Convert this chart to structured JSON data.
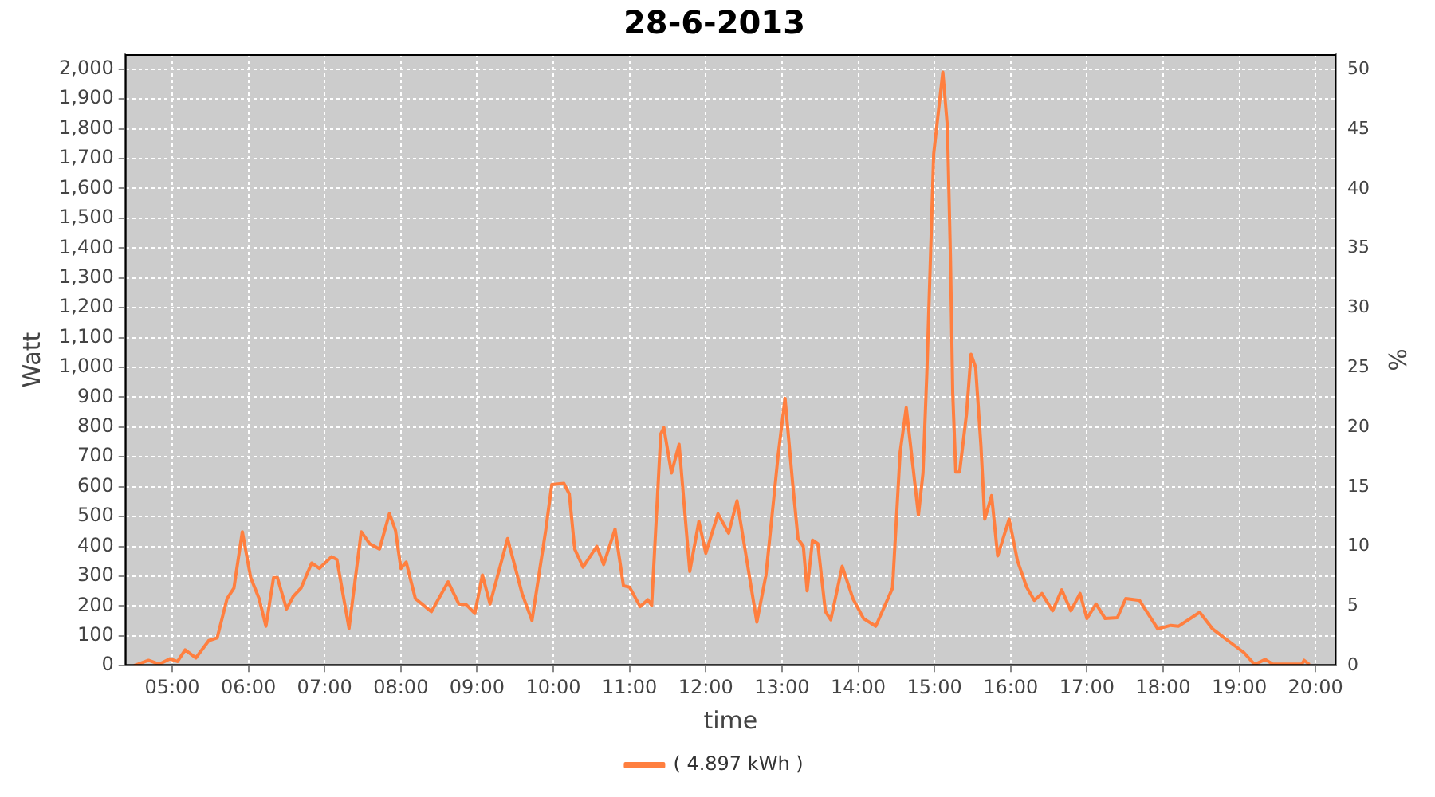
{
  "chart_data": {
    "type": "line",
    "title": "28-6-2013",
    "xlabel": "time",
    "ylabel": "Watt",
    "y2label": "%",
    "xlim": [
      4.38,
      20.27
    ],
    "xticks": [
      {
        "value": 5,
        "label": "05:00"
      },
      {
        "value": 6,
        "label": "06:00"
      },
      {
        "value": 7,
        "label": "07:00"
      },
      {
        "value": 8,
        "label": "08:00"
      },
      {
        "value": 9,
        "label": "09:00"
      },
      {
        "value": 10,
        "label": "10:00"
      },
      {
        "value": 11,
        "label": "11:00"
      },
      {
        "value": 12,
        "label": "12:00"
      },
      {
        "value": 13,
        "label": "13:00"
      },
      {
        "value": 14,
        "label": "14:00"
      },
      {
        "value": 15,
        "label": "15:00"
      },
      {
        "value": 16,
        "label": "16:00"
      },
      {
        "value": 17,
        "label": "17:00"
      },
      {
        "value": 18,
        "label": "18:00"
      },
      {
        "value": 19,
        "label": "19:00"
      },
      {
        "value": 20,
        "label": "20:00"
      }
    ],
    "ylim": [
      0,
      2050
    ],
    "yticks": [
      0,
      100,
      200,
      300,
      400,
      500,
      600,
      700,
      800,
      900,
      {
        "value": 1000,
        "label": "1,000"
      },
      {
        "value": 1100,
        "label": "1,100"
      },
      {
        "value": 1200,
        "label": "1,200"
      },
      {
        "value": 1300,
        "label": "1,300"
      },
      {
        "value": 1400,
        "label": "1,400"
      },
      {
        "value": 1500,
        "label": "1,500"
      },
      {
        "value": 1600,
        "label": "1,600"
      },
      {
        "value": 1700,
        "label": "1,700"
      },
      {
        "value": 1800,
        "label": "1,800"
      },
      {
        "value": 1900,
        "label": "1,900"
      },
      {
        "value": 2000,
        "label": "2,000"
      }
    ],
    "y2lim": [
      0,
      51.3
    ],
    "y2ticks": [
      0,
      5,
      10,
      15,
      20,
      25,
      30,
      35,
      40,
      45,
      50
    ],
    "grid": true,
    "legend": "bottom",
    "marker": "none",
    "line_style": "solid",
    "series": [
      {
        "name": "( 4.897 kWh )",
        "color": "#ff7f3f",
        "x": [
          4.5,
          4.55,
          4.69,
          4.83,
          4.97,
          5.07,
          5.17,
          5.31,
          5.48,
          5.59,
          5.72,
          5.81,
          5.92,
          6.03,
          6.14,
          6.23,
          6.33,
          6.38,
          6.5,
          6.59,
          6.69,
          6.83,
          6.93,
          7.09,
          7.16,
          7.32,
          7.48,
          7.59,
          7.72,
          7.85,
          7.93,
          8.0,
          8.07,
          8.19,
          8.4,
          8.62,
          8.76,
          8.86,
          8.97,
          9.07,
          9.17,
          9.4,
          9.59,
          9.72,
          9.9,
          9.98,
          10.14,
          10.21,
          10.28,
          10.39,
          10.57,
          10.66,
          10.81,
          10.92,
          11.0,
          11.14,
          11.24,
          11.29,
          11.41,
          11.45,
          11.55,
          11.65,
          11.79,
          11.91,
          12.0,
          12.16,
          12.3,
          12.41,
          12.52,
          12.67,
          12.79,
          12.95,
          13.04,
          13.14,
          13.21,
          13.28,
          13.33,
          13.4,
          13.47,
          13.57,
          13.64,
          13.79,
          13.93,
          14.07,
          14.23,
          14.45,
          14.55,
          14.63,
          14.72,
          14.79,
          14.85,
          14.9,
          14.99,
          15.11,
          15.17,
          15.21,
          15.24,
          15.28,
          15.33,
          15.42,
          15.48,
          15.54,
          15.61,
          15.66,
          15.75,
          15.83,
          15.98,
          16.09,
          16.21,
          16.31,
          16.41,
          16.55,
          16.67,
          16.79,
          16.91,
          17.0,
          17.12,
          17.24,
          17.4,
          17.51,
          17.69,
          17.93,
          18.1,
          18.2,
          18.48,
          18.65,
          18.85,
          19.06,
          19.2,
          19.34,
          19.44,
          19.82,
          19.85,
          19.92
        ],
        "values": [
          0,
          5,
          18,
          5,
          23,
          14,
          53,
          26,
          84,
          93,
          225,
          260,
          449,
          295,
          225,
          132,
          295,
          295,
          190,
          233,
          260,
          344,
          326,
          365,
          356,
          125,
          449,
          409,
          391,
          510,
          453,
          326,
          347,
          225,
          181,
          281,
          207,
          204,
          175,
          304,
          207,
          426,
          242,
          151,
          453,
          607,
          611,
          575,
          391,
          330,
          400,
          339,
          458,
          268,
          263,
          198,
          221,
          202,
          777,
          798,
          646,
          742,
          316,
          484,
          377,
          509,
          444,
          553,
          382,
          146,
          304,
          707,
          896,
          611,
          426,
          400,
          251,
          421,
          409,
          181,
          154,
          333,
          225,
          158,
          132,
          260,
          716,
          865,
          663,
          505,
          646,
          979,
          1716,
          1990,
          1807,
          1368,
          912,
          649,
          649,
          842,
          1044,
          1000,
          737,
          491,
          570,
          368,
          491,
          351,
          263,
          219,
          242,
          184,
          254,
          184,
          242,
          158,
          207,
          158,
          161,
          225,
          219,
          123,
          135,
          132,
          179,
          123,
          84,
          44,
          4,
          21,
          5,
          5,
          18,
          4
        ]
      }
    ]
  }
}
